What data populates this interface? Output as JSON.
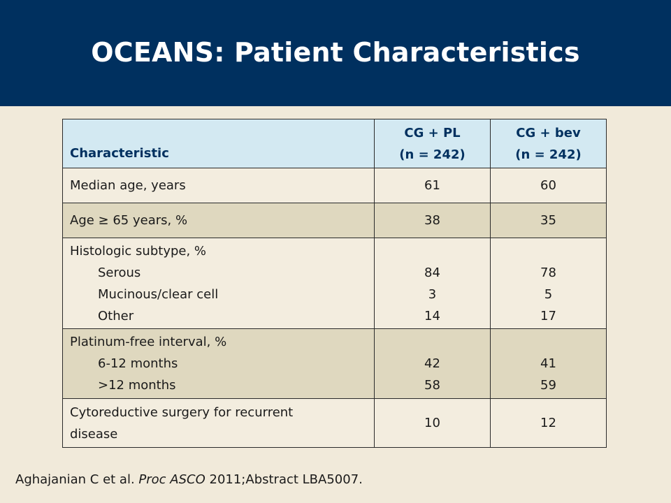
{
  "slide": {
    "title": "OCEANS: Patient Characteristics",
    "colors": {
      "title_bar": "#00305F",
      "background": "#F1EADA",
      "header_row": "#D3E9F2",
      "row_light": "#F3EDDF",
      "row_dark": "#DFD8BF"
    }
  },
  "table": {
    "headers": {
      "characteristic": "Characteristic",
      "col1_line1": "CG + PL",
      "col1_line2": "(n = 242)",
      "col2_line1": "CG + bev",
      "col2_line2": "(n = 242)"
    },
    "rows": {
      "median_age": {
        "label": "Median age, years",
        "cg_pl": "61",
        "cg_bev": "60"
      },
      "age_65": {
        "label": "Age ≥ 65 years, %",
        "cg_pl": "38",
        "cg_bev": "35"
      },
      "histologic": {
        "label": "Histologic subtype, %",
        "serous": {
          "label": "Serous",
          "cg_pl": "84",
          "cg_bev": "78"
        },
        "mucinous": {
          "label": "Mucinous/clear cell",
          "cg_pl": "3",
          "cg_bev": "5"
        },
        "other": {
          "label": "Other",
          "cg_pl": "14",
          "cg_bev": "17"
        }
      },
      "platinum": {
        "label": "Platinum-free interval, %",
        "months_6_12": {
          "label": "6-12 months",
          "cg_pl": "42",
          "cg_bev": "41"
        },
        "months_gt12": {
          "label": ">12 months",
          "cg_pl": "58",
          "cg_bev": "59"
        }
      },
      "cytoreductive": {
        "label_line1": "Cytoreductive surgery for recurrent",
        "label_line2": "disease",
        "cg_pl": "10",
        "cg_bev": "12"
      }
    }
  },
  "citation": {
    "authors": "Aghajanian C et al. ",
    "journal": "Proc ASCO",
    "rest": " 2011;Abstract LBA5007."
  }
}
